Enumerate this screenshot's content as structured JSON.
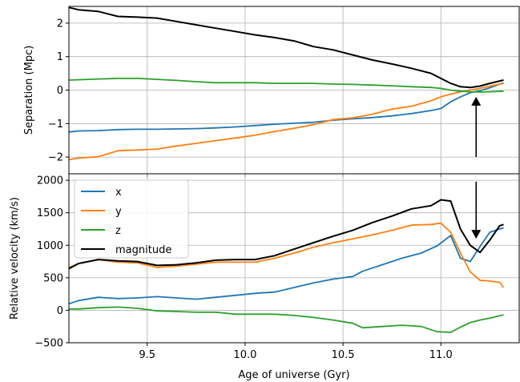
{
  "chart_data": [
    {
      "type": "line",
      "ylabel": "Separation (Mpc)",
      "xlim": [
        9.1,
        11.4
      ],
      "ylim": [
        -2.5,
        2.5
      ],
      "yticks": [
        2,
        1,
        0,
        -1,
        -2
      ],
      "ytick_labels": [
        "2",
        "1",
        "0",
        "−1",
        "−2"
      ],
      "xticks": [
        9.5,
        10.0,
        10.5,
        11.0
      ],
      "grid": true,
      "series": [
        {
          "key": "x",
          "color": "#1f77b4",
          "x": [
            9.1,
            9.15,
            9.25,
            9.35,
            9.45,
            9.55,
            9.65,
            9.75,
            9.85,
            9.95,
            10.05,
            10.15,
            10.25,
            10.35,
            10.45,
            10.55,
            10.65,
            10.75,
            10.85,
            10.95,
            11.0,
            11.05,
            11.1,
            11.15,
            11.2,
            11.25,
            11.32
          ],
          "y": [
            -1.25,
            -1.22,
            -1.21,
            -1.18,
            -1.17,
            -1.17,
            -1.16,
            -1.15,
            -1.13,
            -1.1,
            -1.06,
            -1.02,
            -0.99,
            -0.96,
            -0.9,
            -0.86,
            -0.82,
            -0.77,
            -0.7,
            -0.61,
            -0.55,
            -0.35,
            -0.2,
            -0.08,
            -0.02,
            0.07,
            0.22
          ]
        },
        {
          "key": "y",
          "color": "#ff7f0e",
          "x": [
            9.1,
            9.15,
            9.25,
            9.35,
            9.45,
            9.55,
            9.65,
            9.75,
            9.85,
            9.95,
            10.05,
            10.15,
            10.25,
            10.35,
            10.45,
            10.55,
            10.65,
            10.75,
            10.85,
            10.95,
            11.0,
            11.05,
            11.1,
            11.15,
            11.2,
            11.25,
            11.32
          ],
          "y": [
            -2.08,
            -2.03,
            -1.99,
            -1.81,
            -1.79,
            -1.76,
            -1.67,
            -1.59,
            -1.51,
            -1.43,
            -1.35,
            -1.24,
            -1.14,
            -1.03,
            -0.88,
            -0.83,
            -0.72,
            -0.57,
            -0.48,
            -0.32,
            -0.2,
            -0.12,
            -0.05,
            0.0,
            0.05,
            0.12,
            0.2
          ]
        },
        {
          "key": "z",
          "color": "#2ca02c",
          "x": [
            9.1,
            9.2,
            9.35,
            9.45,
            9.55,
            9.65,
            9.75,
            9.85,
            9.95,
            10.05,
            10.15,
            10.25,
            10.35,
            10.45,
            10.55,
            10.65,
            10.75,
            10.85,
            10.95,
            11.0,
            11.05,
            11.1,
            11.15,
            11.2,
            11.25,
            11.32
          ],
          "y": [
            0.3,
            0.32,
            0.35,
            0.35,
            0.32,
            0.29,
            0.25,
            0.22,
            0.22,
            0.22,
            0.2,
            0.2,
            0.2,
            0.18,
            0.17,
            0.15,
            0.13,
            0.1,
            0.08,
            0.05,
            0.0,
            -0.03,
            -0.05,
            -0.06,
            -0.05,
            -0.03
          ]
        },
        {
          "key": "magnitude",
          "color": "#000000",
          "x": [
            9.1,
            9.15,
            9.25,
            9.35,
            9.45,
            9.55,
            9.65,
            9.75,
            9.85,
            9.95,
            10.05,
            10.15,
            10.25,
            10.35,
            10.45,
            10.55,
            10.65,
            10.75,
            10.85,
            10.95,
            11.0,
            11.05,
            11.1,
            11.15,
            11.2,
            11.25,
            11.32
          ],
          "y": [
            2.47,
            2.4,
            2.35,
            2.2,
            2.18,
            2.15,
            2.05,
            1.95,
            1.85,
            1.75,
            1.65,
            1.57,
            1.47,
            1.3,
            1.2,
            1.05,
            0.9,
            0.78,
            0.65,
            0.5,
            0.35,
            0.2,
            0.1,
            0.08,
            0.12,
            0.2,
            0.3
          ]
        }
      ],
      "arrow": {
        "x": 11.18,
        "from_y": -2.0,
        "to_y": -0.2
      }
    },
    {
      "type": "line",
      "xlabel": "Age of universe (Gyr)",
      "ylabel": "Relative velocity (km/s)",
      "xlim": [
        9.1,
        11.4
      ],
      "ylim": [
        -500,
        2100
      ],
      "yticks": [
        2000,
        1500,
        1000,
        500,
        0,
        -500
      ],
      "ytick_labels": [
        "2000",
        "1500",
        "1000",
        "500",
        "0",
        "−500"
      ],
      "xticks": [
        9.5,
        10.0,
        10.5,
        11.0
      ],
      "xtick_labels": [
        "9.5",
        "10.0",
        "10.5",
        "11.0"
      ],
      "grid": true,
      "legend": {
        "position": "upper-left",
        "entries": [
          "x",
          "y",
          "z",
          "magnitude"
        ]
      },
      "series": [
        {
          "key": "x",
          "name": "x",
          "color": "#1f77b4",
          "x": [
            9.1,
            9.15,
            9.25,
            9.35,
            9.45,
            9.55,
            9.65,
            9.75,
            9.85,
            9.95,
            10.05,
            10.15,
            10.25,
            10.35,
            10.45,
            10.55,
            10.6,
            10.7,
            10.8,
            10.9,
            10.98,
            11.05,
            11.1,
            11.15,
            11.2,
            11.25,
            11.3,
            11.32
          ],
          "y": [
            100,
            150,
            200,
            180,
            190,
            210,
            190,
            170,
            200,
            230,
            260,
            280,
            350,
            420,
            480,
            520,
            600,
            700,
            800,
            880,
            990,
            1150,
            800,
            750,
            980,
            1200,
            1250,
            1270
          ]
        },
        {
          "key": "y",
          "name": "y",
          "color": "#ff7f0e",
          "x": [
            9.1,
            9.15,
            9.25,
            9.35,
            9.45,
            9.55,
            9.65,
            9.75,
            9.85,
            9.95,
            10.05,
            10.15,
            10.25,
            10.35,
            10.45,
            10.55,
            10.65,
            10.75,
            10.85,
            10.95,
            11.0,
            11.05,
            11.1,
            11.15,
            11.2,
            11.25,
            11.3,
            11.32
          ],
          "y": [
            660,
            720,
            780,
            740,
            730,
            660,
            680,
            710,
            740,
            740,
            740,
            800,
            880,
            970,
            1040,
            1100,
            1160,
            1230,
            1310,
            1320,
            1340,
            1200,
            880,
            590,
            460,
            450,
            430,
            350
          ]
        },
        {
          "key": "z",
          "name": "z",
          "color": "#2ca02c",
          "x": [
            9.1,
            9.15,
            9.25,
            9.35,
            9.45,
            9.55,
            9.65,
            9.75,
            9.85,
            9.95,
            10.05,
            10.15,
            10.25,
            10.35,
            10.45,
            10.55,
            10.6,
            10.7,
            10.8,
            10.9,
            10.98,
            11.05,
            11.1,
            11.15,
            11.2,
            11.25,
            11.32
          ],
          "y": [
            20,
            20,
            40,
            50,
            30,
            -10,
            -20,
            -30,
            -30,
            -60,
            -60,
            -60,
            -80,
            -110,
            -150,
            -200,
            -270,
            -250,
            -230,
            -250,
            -330,
            -340,
            -260,
            -190,
            -150,
            -120,
            -70
          ]
        },
        {
          "key": "magnitude",
          "name": "magnitude",
          "color": "#000000",
          "x": [
            9.1,
            9.15,
            9.25,
            9.35,
            9.45,
            9.55,
            9.65,
            9.75,
            9.85,
            9.95,
            10.05,
            10.15,
            10.25,
            10.35,
            10.45,
            10.55,
            10.65,
            10.75,
            10.85,
            10.95,
            11.0,
            11.05,
            11.1,
            11.15,
            11.2,
            11.25,
            11.3,
            11.32
          ],
          "y": [
            640,
            720,
            780,
            760,
            750,
            690,
            700,
            730,
            770,
            780,
            780,
            840,
            940,
            1040,
            1140,
            1230,
            1350,
            1450,
            1560,
            1610,
            1700,
            1680,
            1250,
            1000,
            890,
            1080,
            1300,
            1320
          ]
        }
      ],
      "arrow": {
        "x": 11.18,
        "from_y": 1980,
        "to_y": 1100
      }
    }
  ]
}
